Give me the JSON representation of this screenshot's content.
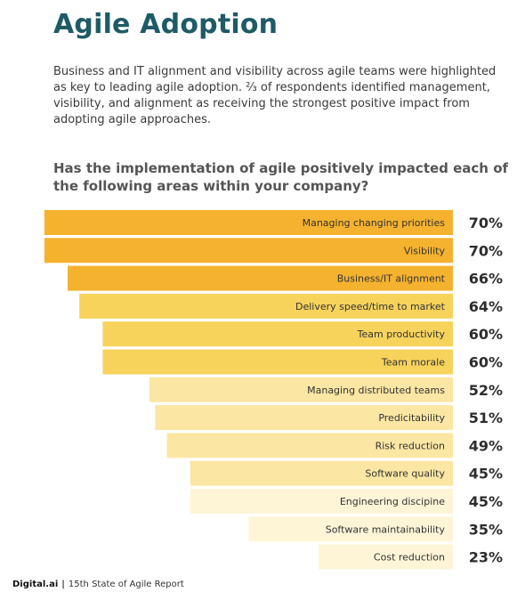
{
  "header": {
    "title": "Agile Adoption",
    "intro": "Business and IT alignment and visibility across agile teams were highlighted as key to leading agile adoption. ⅔ of respondents identified management, visibility, and alignment as receiving the strongest positive impact from adopting agile approaches.",
    "question": "Has the implementation of agile positively impacted each of the following areas within your company?"
  },
  "chart_data": {
    "type": "bar",
    "orientation": "horizontal",
    "value_suffix": "%",
    "categories": [
      "Managing changing priorities",
      "Visibility",
      "Business/IT alignment",
      "Delivery speed/time to market",
      "Team productivity",
      "Team morale",
      "Managing distributed teams",
      "Predicitability",
      "Risk reduction",
      "Software quality",
      "Engineering discipine",
      "Software maintainability",
      "Cost reduction"
    ],
    "values": [
      70,
      70,
      66,
      64,
      60,
      60,
      52,
      51,
      49,
      45,
      45,
      35,
      23
    ],
    "value_labels": [
      "70%",
      "70%",
      "66%",
      "64%",
      "60%",
      "60%",
      "52%",
      "51%",
      "49%",
      "45%",
      "45%",
      "35%",
      "23%"
    ],
    "colors": [
      "#f5b22e",
      "#f5b22e",
      "#f5b22e",
      "#f7d35c",
      "#f7d35c",
      "#f7d35c",
      "#fbe6a3",
      "#fbe6a3",
      "#fbe6a3",
      "#fbe6a3",
      "#fef5d7",
      "#fef5d7",
      "#fef5d7"
    ]
  },
  "footer": {
    "brand": "Digital.ai",
    "separator": "|",
    "report": "15th State of Agile Report"
  }
}
